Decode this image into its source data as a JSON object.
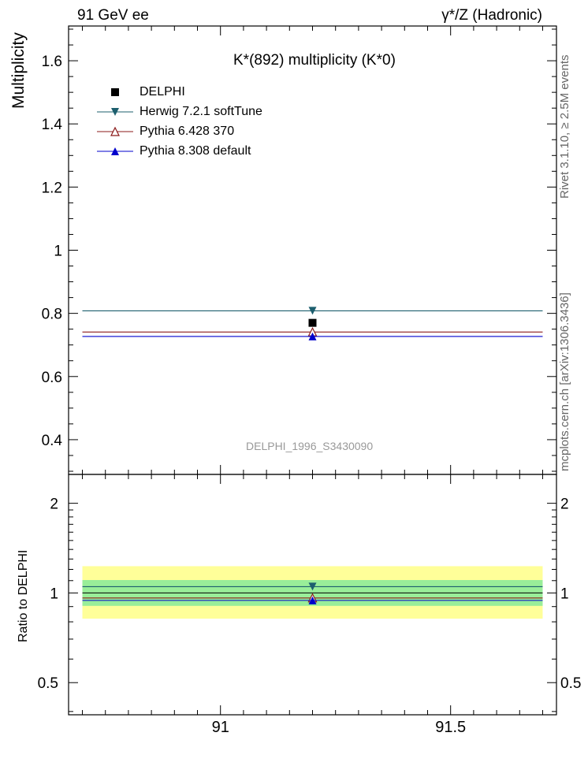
{
  "header": {
    "left": "91 GeV ee",
    "right": "γ*/Z (Hadronic)"
  },
  "side_labels": {
    "rivet": "Rivet 3.1.10, ≥ 2.5M events",
    "mcplots": "mcplots.cern.ch [arXiv:1306.3436]"
  },
  "watermark": "DELPHI_1996_S3430090",
  "chart_data": [
    {
      "type": "scatter",
      "title": "K*(892) multiplicity (K*0)",
      "ylabel": "Multiplicity",
      "xlim": [
        90.67,
        91.73
      ],
      "ylim": [
        0.29,
        1.71
      ],
      "x_ticks": [
        91,
        91.5
      ],
      "y_ticks": [
        0.4,
        0.6,
        0.8,
        1,
        1.2,
        1.4,
        1.6
      ],
      "y_tick_labels": [
        "0.4",
        "0.6",
        "0.8",
        "1",
        "1.2",
        "1.4",
        "1.6"
      ],
      "x_range": [
        90.7,
        91.7
      ],
      "series": [
        {
          "name": "DELPHI",
          "x": 91.2,
          "value": 0.77,
          "color": "#000000",
          "marker": "square"
        },
        {
          "name": "Herwig 7.2.1 softTune",
          "x": 91.2,
          "value": 0.808,
          "color": "#1d5f6e",
          "marker": "triangle-down"
        },
        {
          "name": "Pythia 6.428 370",
          "x": 91.2,
          "value": 0.741,
          "color": "#8b1a1a",
          "marker": "triangle-up-open"
        },
        {
          "name": "Pythia 8.308 default",
          "x": 91.2,
          "value": 0.727,
          "color": "#0000cc",
          "marker": "triangle-up"
        }
      ]
    },
    {
      "type": "scatter",
      "ylabel": "Ratio to DELPHI",
      "log_y": true,
      "xlim": [
        90.67,
        91.73
      ],
      "ylim": [
        0.39,
        2.5
      ],
      "x_ticks": [
        91,
        91.5
      ],
      "x_tick_labels": [
        "91",
        "91.5"
      ],
      "y_ticks": [
        0.5,
        1,
        2
      ],
      "y_tick_labels": [
        "0.5",
        "1",
        "2"
      ],
      "bands": [
        {
          "low": 0.82,
          "high": 1.23,
          "color": "#ffff99"
        },
        {
          "low": 0.905,
          "high": 1.105,
          "color": "#99ee99"
        }
      ],
      "series": [
        {
          "name": "Herwig 7.2.1 softTune",
          "x": 91.2,
          "value": 1.05,
          "color": "#1d5f6e",
          "marker": "triangle-down"
        },
        {
          "name": "Pythia 6.428 370",
          "x": 91.2,
          "value": 0.962,
          "color": "#8b1a1a",
          "marker": "triangle-up-open"
        },
        {
          "name": "Pythia 8.308 default",
          "x": 91.2,
          "value": 0.944,
          "color": "#0000cc",
          "marker": "triangle-up"
        }
      ]
    }
  ]
}
